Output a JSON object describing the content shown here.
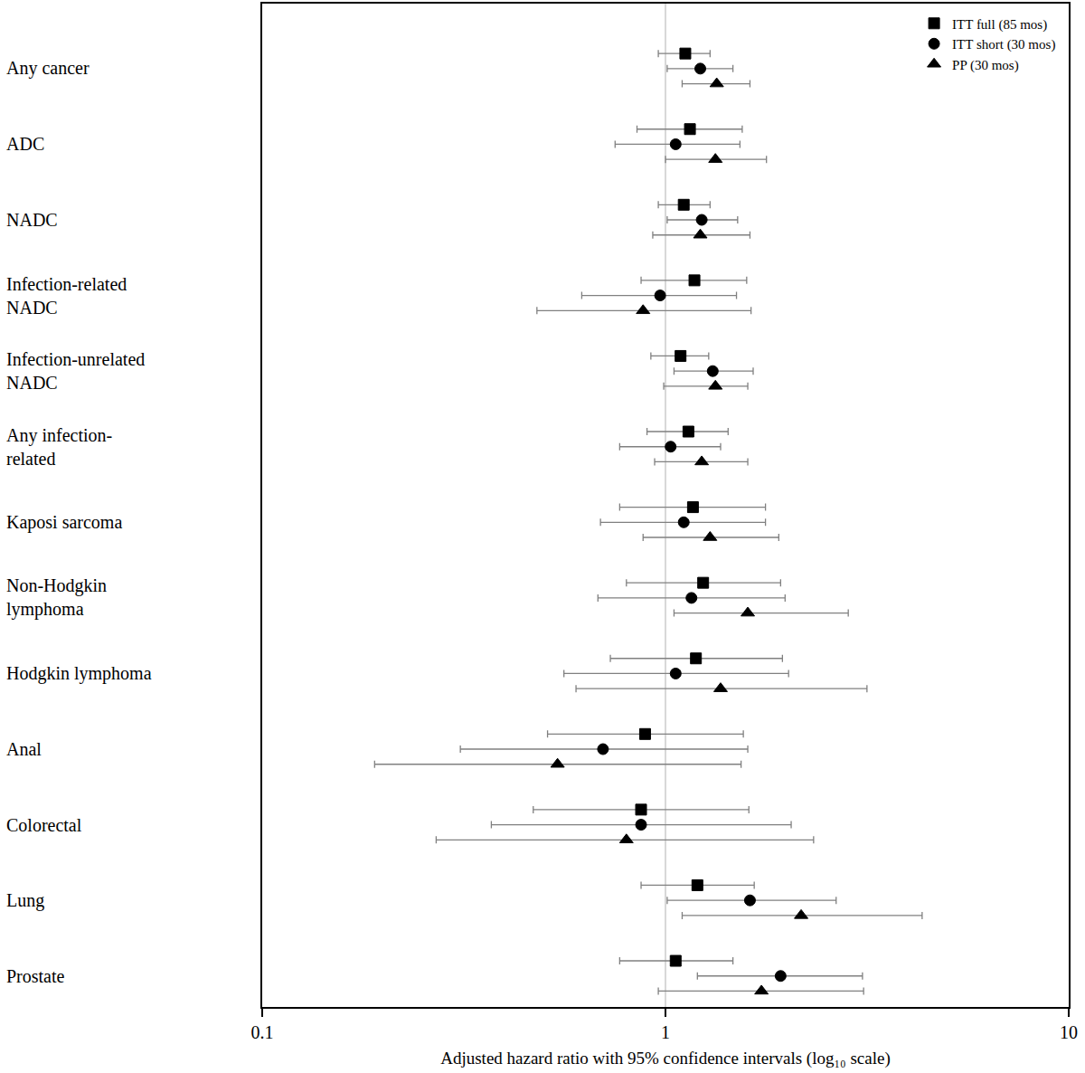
{
  "chart_data": {
    "type": "forest",
    "x_label": "Adjusted hazard ratio with 95% confidence intervals (log₁₀ scale)",
    "categories": [
      "Any cancer",
      "ADC",
      "NADC",
      "Infection-related\nNADC",
      "Infection-unrelated\nNADC",
      "Any infection-\nrelated",
      "Kaposi sarcoma",
      "Non-Hodgkin\nlymphoma",
      "Hodgkin lymphoma",
      "Anal",
      "Colorectal",
      "Lung",
      "Prostate"
    ],
    "series": [
      {
        "name": "ITT full (85 mos)",
        "color": "#000000",
        "marker": "square",
        "values": [
          1.12,
          1.15,
          1.11,
          1.18,
          1.09,
          1.14,
          1.17,
          1.24,
          1.19,
          0.89,
          0.87,
          1.2,
          1.06
        ],
        "ci_lower": [
          0.96,
          0.85,
          0.96,
          0.87,
          0.92,
          0.9,
          0.77,
          0.8,
          0.73,
          0.51,
          0.47,
          0.87,
          0.77
        ],
        "ci_upper": [
          1.29,
          1.55,
          1.29,
          1.59,
          1.28,
          1.43,
          1.77,
          1.93,
          1.95,
          1.56,
          1.61,
          1.66,
          1.47
        ]
      },
      {
        "name": "ITT short (30 mos)",
        "color": "#000000",
        "marker": "circle",
        "values": [
          1.22,
          1.06,
          1.23,
          0.97,
          1.31,
          1.03,
          1.11,
          1.16,
          1.06,
          0.7,
          0.87,
          1.62,
          1.93
        ],
        "ci_lower": [
          1.01,
          0.75,
          1.01,
          0.62,
          1.05,
          0.77,
          0.69,
          0.68,
          0.56,
          0.31,
          0.37,
          1.01,
          1.2
        ],
        "ci_upper": [
          1.47,
          1.53,
          1.51,
          1.5,
          1.65,
          1.37,
          1.77,
          1.98,
          2.02,
          1.6,
          2.05,
          2.65,
          3.08
        ]
      },
      {
        "name": "PP (30 mos)",
        "color": "#000000",
        "marker": "triangle-up",
        "values": [
          1.34,
          1.33,
          1.22,
          0.88,
          1.33,
          1.23,
          1.29,
          1.6,
          1.37,
          0.54,
          0.8,
          2.17,
          1.73
        ],
        "ci_lower": [
          1.1,
          1.0,
          0.93,
          0.48,
          0.99,
          0.94,
          0.88,
          1.05,
          0.6,
          0.19,
          0.27,
          1.1,
          0.96
        ],
        "ci_upper": [
          1.62,
          1.78,
          1.62,
          1.63,
          1.6,
          1.6,
          1.91,
          2.84,
          3.16,
          1.54,
          2.33,
          4.33,
          3.1
        ]
      }
    ],
    "log": "x",
    "xlim": [
      0.1,
      10
    ],
    "xticks": [
      0.1,
      1,
      10
    ],
    "grid": true,
    "legend": "top right"
  }
}
